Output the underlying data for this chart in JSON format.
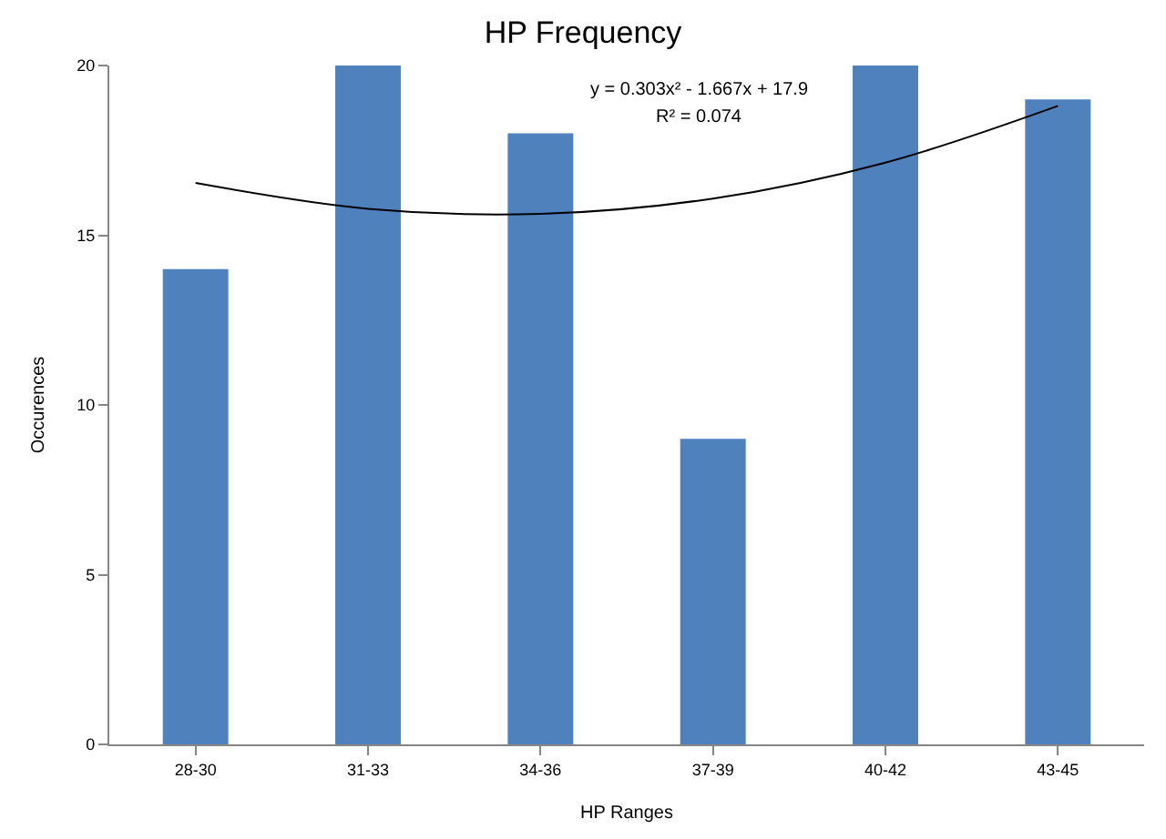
{
  "chart_data": {
    "type": "bar",
    "title": "HP Frequency",
    "xlabel": "HP Ranges",
    "ylabel": "Occurences",
    "categories": [
      "28-30",
      "31-33",
      "34-36",
      "37-39",
      "40-42",
      "43-45"
    ],
    "series": [
      {
        "color": "#4f81bd",
        "values": [
          14,
          20,
          18,
          9,
          20,
          19
        ]
      },
      {
        "type": "line",
        "color": "#000000",
        "values": [
          16.54,
          15.78,
          15.63,
          16.08,
          17.14,
          18.81
        ]
      }
    ],
    "ylim": [
      0,
      20
    ],
    "yticks": [
      0,
      5,
      10,
      15,
      20
    ],
    "annotations": [
      "y = 0.303x² - 1.667x + 17.9",
      "R² = 0.074"
    ]
  }
}
